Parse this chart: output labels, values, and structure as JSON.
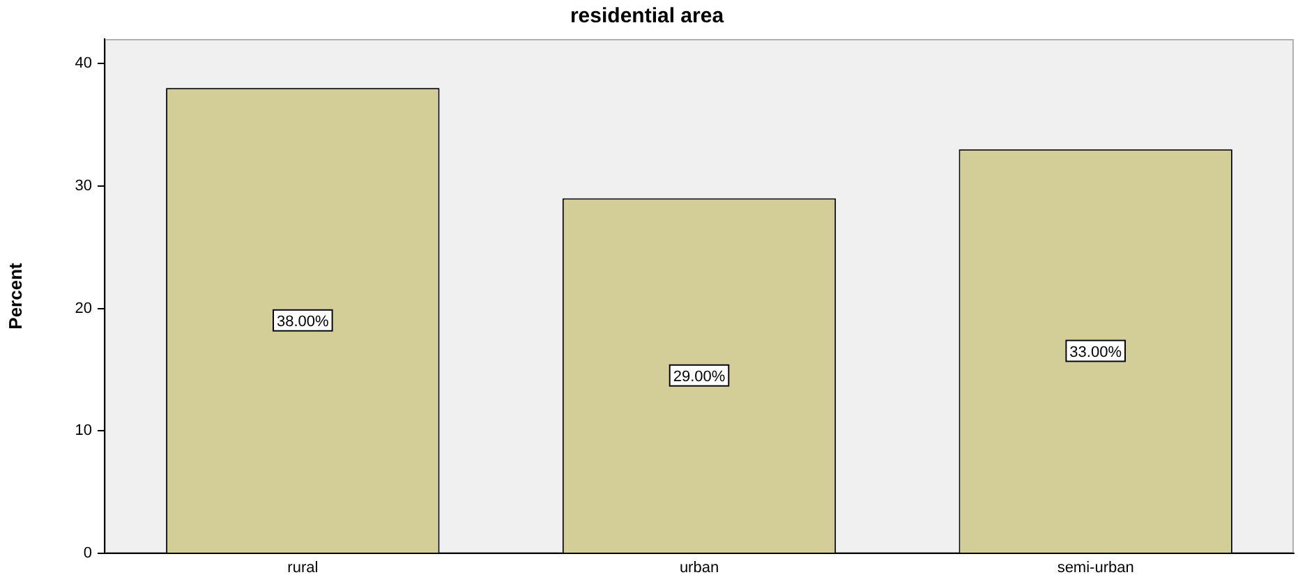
{
  "chart_data": {
    "type": "bar",
    "title": "residential area",
    "ylabel": "Percent",
    "categories": [
      "rural",
      "urban",
      "semi-urban"
    ],
    "values": [
      38,
      29,
      33
    ],
    "color": "#d3cd98",
    "value_labels": [
      "38.00%",
      "29.00%",
      "33.00%"
    ],
    "ylim": [
      0,
      42
    ],
    "yticks": [
      0,
      10,
      20,
      30,
      40
    ],
    "grid": false,
    "legend": false
  }
}
